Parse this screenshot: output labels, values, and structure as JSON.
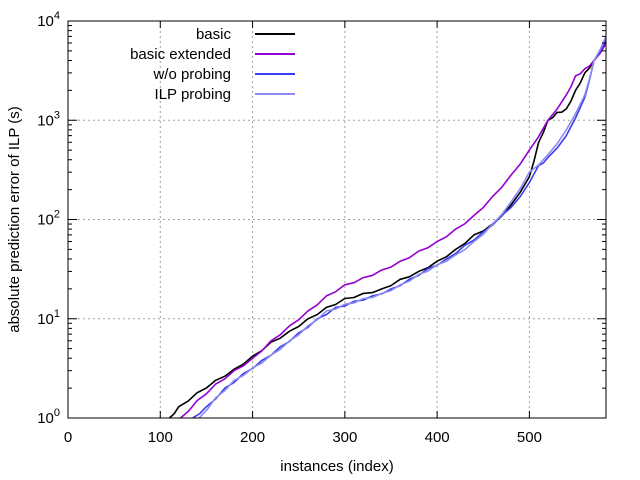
{
  "chart_data": {
    "type": "line",
    "title": "",
    "xlabel": "instances (index)",
    "ylabel": "absolute prediction error of ILP (s)",
    "xlim": [
      0,
      583
    ],
    "ylim": [
      1,
      10000
    ],
    "yscale": "log",
    "grid": true,
    "legend_position": "top-left",
    "xticks": [
      0,
      100,
      200,
      300,
      400,
      500
    ],
    "xtick_labels": [
      "0",
      "100",
      "200",
      "300",
      "400",
      "500"
    ],
    "yticks": [
      1,
      10,
      100,
      1000,
      10000
    ],
    "ytick_labels": [
      {
        "base": "10",
        "exp": "0"
      },
      {
        "base": "10",
        "exp": "1"
      },
      {
        "base": "10",
        "exp": "2"
      },
      {
        "base": "10",
        "exp": "3"
      },
      {
        "base": "10",
        "exp": "4"
      }
    ],
    "series": [
      {
        "name": "basic",
        "color": "#000000",
        "x": [
          110,
          120,
          140,
          160,
          180,
          200,
          220,
          240,
          260,
          280,
          300,
          320,
          340,
          360,
          380,
          400,
          420,
          440,
          460,
          480,
          500,
          510,
          520,
          530,
          540,
          550,
          560,
          570,
          583
        ],
        "y": [
          1,
          1.3,
          1.8,
          2.4,
          3.1,
          4.2,
          5.8,
          7.5,
          10,
          13,
          16,
          18,
          20,
          25,
          30,
          38,
          50,
          70,
          90,
          140,
          270,
          600,
          1000,
          1200,
          1300,
          2000,
          3000,
          4000,
          6000
        ]
      },
      {
        "name": "basic extended",
        "color": "#9400d3",
        "x": [
          122,
          140,
          160,
          180,
          200,
          220,
          240,
          260,
          280,
          300,
          320,
          340,
          360,
          380,
          400,
          420,
          440,
          460,
          480,
          500,
          520,
          540,
          550,
          560,
          570,
          583
        ],
        "y": [
          1,
          1.5,
          2.2,
          3.0,
          4.0,
          6.0,
          8.5,
          12,
          17,
          22,
          26,
          31,
          38,
          48,
          60,
          80,
          110,
          170,
          280,
          500,
          1000,
          1800,
          2800,
          3300,
          4000,
          6000
        ]
      },
      {
        "name": "w/o probing",
        "color": "#3c3cf0",
        "x": [
          135,
          150,
          170,
          190,
          210,
          230,
          250,
          270,
          290,
          310,
          330,
          350,
          370,
          390,
          410,
          430,
          450,
          470,
          490,
          510,
          520,
          540,
          560,
          570,
          583
        ],
        "y": [
          1,
          1.3,
          2.0,
          2.8,
          3.8,
          5.2,
          7.2,
          10,
          13,
          15,
          17,
          20,
          25,
          32,
          40,
          55,
          75,
          110,
          170,
          350,
          420,
          700,
          1700,
          4000,
          6500
        ]
      },
      {
        "name": "ILP probing",
        "color": "#8c8cf0",
        "x": [
          142,
          160,
          180,
          200,
          220,
          240,
          260,
          280,
          300,
          320,
          340,
          360,
          380,
          400,
          420,
          440,
          460,
          480,
          500,
          520,
          540,
          560,
          570,
          583
        ],
        "y": [
          1,
          1.6,
          2.4,
          3.2,
          4.3,
          6.0,
          8.5,
          12,
          14,
          16,
          18,
          22,
          28,
          35,
          44,
          60,
          90,
          150,
          300,
          450,
          800,
          1800,
          4000,
          7000
        ]
      }
    ]
  }
}
